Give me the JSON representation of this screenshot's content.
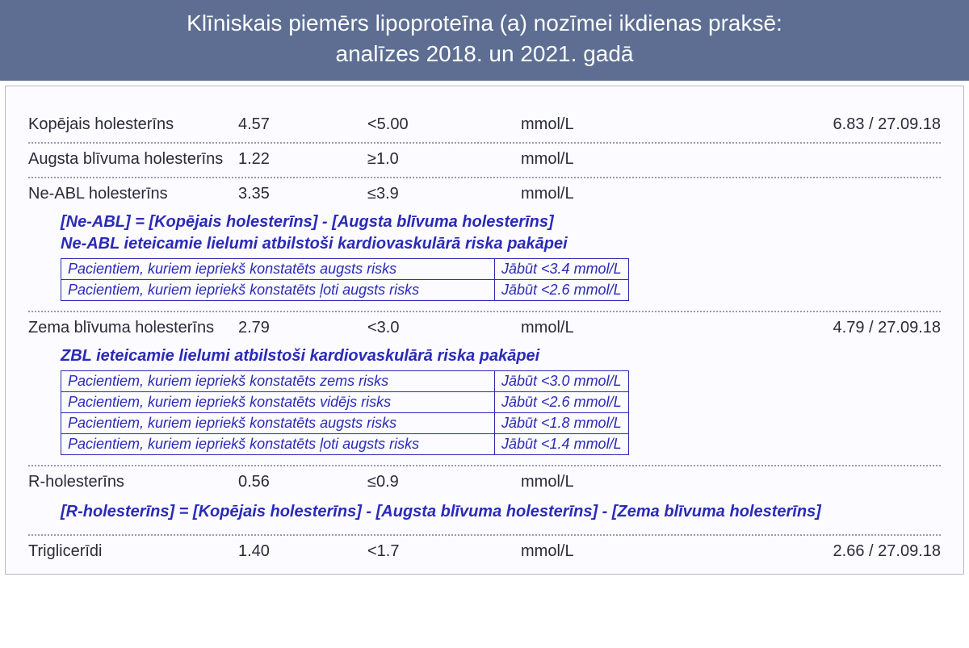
{
  "title_line1": "Klīniskais piemērs lipoproteīna (a) nozīmei ikdienas praksē:",
  "title_line2": "analīzes 2018. un 2021. gadā",
  "colors": {
    "title_bg": "#5d6e92",
    "title_text": "#ffffff",
    "sheet_border": "#b7b7c9",
    "sheet_bg": "#fcfbff",
    "body_text": "#2b2b38",
    "note_text": "#2a2ab8",
    "separator": "#9a9aae"
  },
  "unit": "mmol/L",
  "rows": {
    "total": {
      "name": "Kopējais holesterīns",
      "value": "4.57",
      "ref": "<5.00",
      "prev": "6.83 / 27.09.18"
    },
    "hdl": {
      "name": "Augsta blīvuma holesterīns",
      "value": "1.22",
      "ref": "≥1.0",
      "prev": ""
    },
    "neabl": {
      "name": "Ne-ABL holesterīns",
      "value": "3.35",
      "ref": "≤3.9",
      "prev": ""
    },
    "ldl": {
      "name": "Zema blīvuma holesterīns",
      "value": "2.79",
      "ref": "<3.0",
      "prev": "4.79 / 27.09.18"
    },
    "rhol": {
      "name": "R-holesterīns",
      "value": "0.56",
      "ref": "≤0.9",
      "prev": ""
    },
    "trig": {
      "name": "Triglicerīdi",
      "value": "1.40",
      "ref": "<1.7",
      "prev": "2.66 / 27.09.18"
    }
  },
  "neabl_note": {
    "formula": "[Ne-ABL] = [Kopējais holesterīns] - [Augsta blīvuma holesterīns]",
    "heading": "Ne-ABL ieteicamie lielumi atbilstoši kardiovaskulārā riska pakāpei",
    "risk": [
      {
        "label": "Pacientiem, kuriem iepriekš konstatēts augsts risks",
        "target": "Jābūt <3.4 mmol/L"
      },
      {
        "label": "Pacientiem, kuriem iepriekš konstatēts ļoti augsts risks",
        "target": "Jābūt <2.6 mmol/L"
      }
    ]
  },
  "ldl_note": {
    "heading": "ZBL ieteicamie lielumi atbilstoši kardiovaskulārā riska pakāpei",
    "risk": [
      {
        "label": "Pacientiem, kuriem iepriekš konstatēts zems risks",
        "target": "Jābūt <3.0 mmol/L"
      },
      {
        "label": "Pacientiem, kuriem iepriekš konstatēts vidējs risks",
        "target": "Jābūt <2.6 mmol/L"
      },
      {
        "label": "Pacientiem, kuriem iepriekš konstatēts augsts risks",
        "target": "Jābūt <1.8 mmol/L"
      },
      {
        "label": "Pacientiem, kuriem iepriekš konstatēts ļoti augsts risks",
        "target": "Jābūt <1.4 mmol/L"
      }
    ]
  },
  "rhol_formula": "[R-holesterīns] = [Kopējais holesterīns] - [Augsta blīvuma holesterīns] - [Zema blīvuma holesterīns]"
}
